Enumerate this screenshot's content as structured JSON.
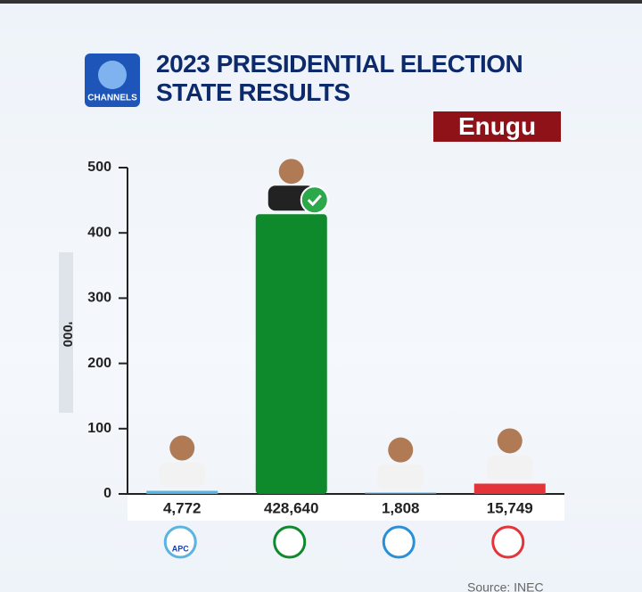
{
  "logo": "CHANNELS",
  "state": "Enugu",
  "source": "Source: INEC",
  "chart_data": {
    "type": "bar",
    "title": "2023 PRESIDENTIAL ELECTION STATE RESULTS",
    "y_label": "'000",
    "categories": [
      "APC",
      null,
      null,
      null
    ],
    "values": [
      4.772,
      428.64,
      1.808,
      15.749
    ],
    "value_labels": [
      "4,772",
      "428,640",
      "1,808",
      "15,749"
    ],
    "colors": [
      "#5ab4e0",
      "#0e8a2c",
      "#2a8fd6",
      "#e3343a"
    ],
    "ylim": [
      0,
      500
    ],
    "yticks": [
      0,
      100,
      200,
      300,
      400,
      500
    ]
  }
}
